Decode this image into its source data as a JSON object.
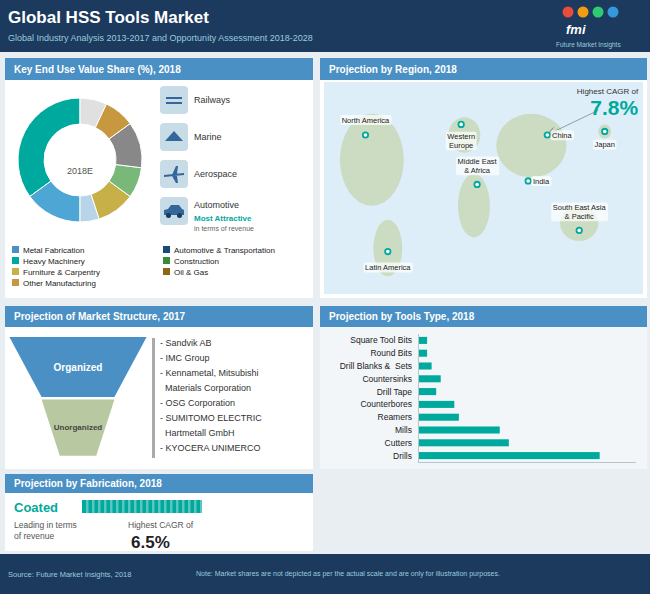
{
  "title": "Global HSS Tools Market",
  "subtitle": "Global Industry Analysis 2013-2017 and Opportunity Assessment 2018-2028",
  "annotations": [
    "fmi",
    "Future Market Insights",
    "Source: Future Market Insights, 2018",
    "Note: Market shares are not depicted as per the actual scale and are only for illustration purposes."
  ],
  "chart_data": [
    {
      "type": "pie",
      "title": "Key End Use Value Share (%), 2018",
      "values": [
        35,
        15,
        5,
        10,
        8,
        12,
        8,
        7
      ],
      "colors": [
        "#00a99d",
        "#4da6d4",
        "#b8d4e8",
        "#c8b048",
        "#7ab87a",
        "#888888",
        "#c89840",
        "#e0e0e0"
      ],
      "annotations": [
        "2018E",
        "Railways",
        "Marine",
        "Aerospace",
        "Automotive",
        "Most Attractive",
        "in terms of revenue"
      ],
      "legend_entries": [
        {
          "label": "Metal Fabrication",
          "color": "#4a90c4"
        },
        {
          "label": "Automotive & Transportation",
          "color": "#1a4a7a"
        },
        {
          "label": "Heavy Machinery",
          "color": "#00a99d"
        },
        {
          "label": "Construction",
          "color": "#3a8a3a"
        },
        {
          "label": "Furniture & Carpentry",
          "color": "#c8b048"
        },
        {
          "label": "Oil & Gas",
          "color": "#8b6914"
        },
        {
          "label": "Other Manufacturing",
          "color": "#c89840"
        }
      ]
    },
    {
      "type": "map",
      "title": "Projection by Region, 2018",
      "annotations": [
        "North America",
        "Latin America",
        "Western\nEurope",
        "Middle East\n& Africa",
        "India",
        "China",
        "Japan",
        "South East Asia\n& Pacific",
        "Highest CAGR of",
        "7.8%"
      ]
    },
    {
      "type": "funnel",
      "title": "Projection of Market Structure, 2017",
      "categories": [
        "Organized",
        "Unorganized"
      ],
      "annotations": [
        "- Sandvik AB",
        "- IMC Group",
        "- Kennametal, Mitsubishi",
        "  Materials Corporation",
        "- OSG Corporation",
        "- SUMITOMO ELECTRIC",
        "  Hartmetall GmbH",
        "- KYOCERA UNIMERCO"
      ]
    },
    {
      "type": "bar",
      "title": "Projection by Tools Type, 2018",
      "orientation": "horizontal",
      "categories": [
        "Square Tool Bits",
        "Round Bits",
        "Drill Blanks &  Sets",
        "Countersinks",
        "Drill Tape",
        "Counterbores",
        "Reamers",
        "Mills",
        "Cutters",
        "Drills"
      ],
      "values": [
        2,
        2,
        3,
        5,
        4,
        8,
        9,
        18,
        20,
        40
      ],
      "color": "#00a99d",
      "xlim": [
        0,
        48
      ],
      "xticks": [],
      "tick_labels": "y"
    },
    {
      "type": "callout",
      "title": "Projection by Fabrication, 2018",
      "annotations": [
        "Coated",
        "Leading in terms",
        "of revenue",
        "Highest CAGR of",
        "6.5%"
      ]
    }
  ]
}
